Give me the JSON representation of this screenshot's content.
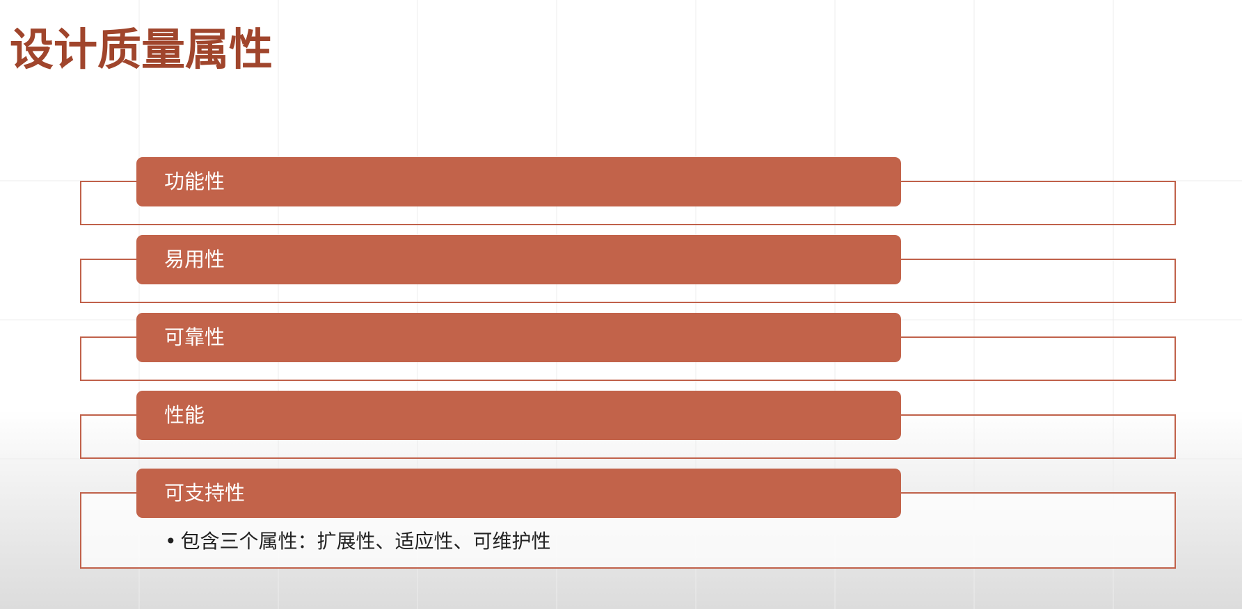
{
  "slide": {
    "title": "设计质量属性"
  },
  "items": [
    {
      "label": "功能性"
    },
    {
      "label": "易用性"
    },
    {
      "label": "可靠性"
    },
    {
      "label": "性能"
    },
    {
      "label": "可支持性",
      "bullets": [
        "包含三个属性：扩展性、适应性、可维护性"
      ]
    }
  ],
  "colors": {
    "title": "#a0452c",
    "pill": "#c2634a",
    "frame": "#c0614a",
    "pill_text": "#ffffff",
    "body_text": "#222222"
  },
  "icons": {
    "bullet": "bullet-dot"
  }
}
